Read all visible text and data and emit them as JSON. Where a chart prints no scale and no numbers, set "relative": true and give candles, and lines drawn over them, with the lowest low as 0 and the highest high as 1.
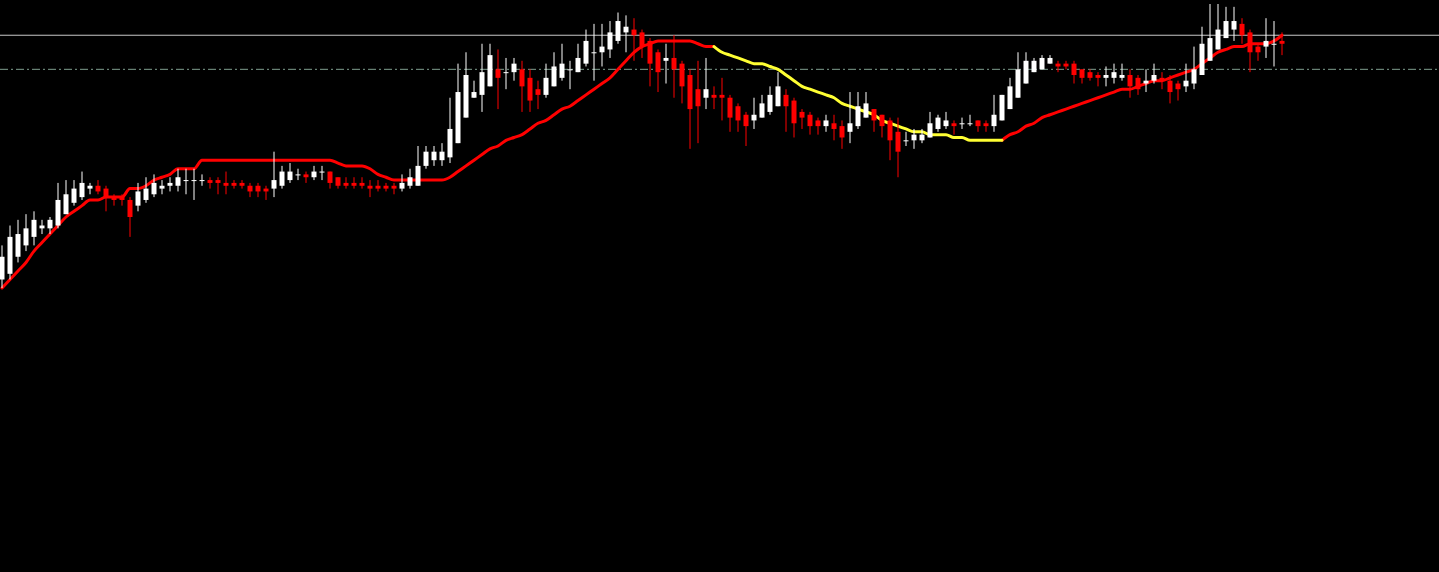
{
  "chart_data": {
    "type": "candlestick",
    "relative": true,
    "categories": [
      null,
      null,
      null,
      null,
      null,
      null,
      null,
      null,
      null,
      null,
      null,
      null,
      null,
      null,
      null,
      null,
      null,
      null,
      null,
      null,
      null,
      null,
      null,
      null,
      null,
      null,
      null,
      null,
      null,
      null,
      null,
      null,
      null,
      null,
      null,
      null,
      null,
      null,
      null,
      null,
      null,
      null,
      null,
      null,
      null,
      null,
      null,
      null,
      null,
      null,
      null,
      null,
      null,
      null,
      null,
      null,
      null,
      null,
      null,
      null,
      null,
      null,
      null,
      null,
      null,
      null,
      null,
      null,
      null,
      null,
      null,
      null,
      null,
      null,
      null,
      null,
      null,
      null,
      null,
      null,
      null,
      null,
      null,
      null,
      null,
      null,
      null,
      null,
      null,
      null,
      null,
      null,
      null,
      null,
      null,
      null,
      null,
      null,
      null,
      null,
      null,
      null,
      null,
      null,
      null,
      null,
      null,
      null,
      null,
      null,
      null,
      null,
      null,
      null,
      null,
      null,
      null,
      null,
      null,
      null,
      null,
      null,
      null,
      null,
      null,
      null,
      null,
      null,
      null,
      null,
      null,
      null,
      null,
      null,
      null,
      null,
      null,
      null,
      null,
      null,
      null,
      null,
      null,
      null,
      null,
      null,
      null,
      null,
      null,
      null,
      null,
      null,
      null,
      null,
      null,
      null,
      null,
      null,
      null,
      null,
      null
    ],
    "ohlc": [
      [
        0.03,
        0.15,
        0,
        0.11
      ],
      [
        0.05,
        0.22,
        0.03,
        0.18
      ],
      [
        0.11,
        0.24,
        0.09,
        0.19
      ],
      [
        0.15,
        0.26,
        0.13,
        0.21
      ],
      [
        0.18,
        0.27,
        0.15,
        0.24
      ],
      [
        0.21,
        0.24,
        0.19,
        0.22
      ],
      [
        0.21,
        0.25,
        0.19,
        0.24
      ],
      [
        0.22,
        0.37,
        0.21,
        0.31
      ],
      [
        0.26,
        0.38,
        0.26,
        0.33
      ],
      [
        0.3,
        0.38,
        0.29,
        0.35
      ],
      [
        0.32,
        0.41,
        0.31,
        0.37
      ],
      [
        0.35,
        0.37,
        0.33,
        0.36
      ],
      [
        0.36,
        0.38,
        0.33,
        0.34
      ],
      [
        0.35,
        0.36,
        0.27,
        0.32
      ],
      [
        0.32,
        0.33,
        0.29,
        0.31
      ],
      [
        0.32,
        0.33,
        0.29,
        0.31
      ],
      [
        0.31,
        0.32,
        0.18,
        0.25
      ],
      [
        0.29,
        0.37,
        0.27,
        0.34
      ],
      [
        0.31,
        0.39,
        0.3,
        0.35
      ],
      [
        0.33,
        0.4,
        0.32,
        0.37
      ],
      [
        0.35,
        0.38,
        0.33,
        0.36
      ],
      [
        0.36,
        0.39,
        0.34,
        0.37
      ],
      [
        0.36,
        0.42,
        0.34,
        0.39
      ],
      [
        0.38,
        0.42,
        0.33,
        0.38
      ],
      [
        0.38,
        0.42,
        0.31,
        0.38
      ],
      [
        0.38,
        0.4,
        0.36,
        0.38
      ],
      [
        0.38,
        0.39,
        0.35,
        0.37
      ],
      [
        0.38,
        0.39,
        0.33,
        0.37
      ],
      [
        0.37,
        0.41,
        0.33,
        0.36
      ],
      [
        0.37,
        0.38,
        0.35,
        0.36
      ],
      [
        0.37,
        0.38,
        0.35,
        0.36
      ],
      [
        0.36,
        0.37,
        0.32,
        0.34
      ],
      [
        0.36,
        0.37,
        0.32,
        0.34
      ],
      [
        0.35,
        0.36,
        0.31,
        0.34
      ],
      [
        0.35,
        0.48,
        0.32,
        0.38
      ],
      [
        0.36,
        0.43,
        0.35,
        0.41
      ],
      [
        0.38,
        0.44,
        0.37,
        0.41
      ],
      [
        0.4,
        0.42,
        0.38,
        0.4
      ],
      [
        0.4,
        0.41,
        0.37,
        0.39
      ],
      [
        0.39,
        0.43,
        0.38,
        0.41
      ],
      [
        0.41,
        0.43,
        0.38,
        0.41
      ],
      [
        0.41,
        0.41,
        0.35,
        0.37
      ],
      [
        0.39,
        0.39,
        0.35,
        0.36
      ],
      [
        0.37,
        0.39,
        0.35,
        0.36
      ],
      [
        0.37,
        0.39,
        0.35,
        0.36
      ],
      [
        0.37,
        0.39,
        0.35,
        0.36
      ],
      [
        0.36,
        0.38,
        0.32,
        0.35
      ],
      [
        0.36,
        0.38,
        0.34,
        0.35
      ],
      [
        0.36,
        0.37,
        0.34,
        0.35
      ],
      [
        0.36,
        0.37,
        0.33,
        0.35
      ],
      [
        0.35,
        0.4,
        0.34,
        0.37
      ],
      [
        0.36,
        0.42,
        0.35,
        0.39
      ],
      [
        0.36,
        0.5,
        0.36,
        0.43
      ],
      [
        0.43,
        0.5,
        0.42,
        0.48
      ],
      [
        0.45,
        0.5,
        0.43,
        0.48
      ],
      [
        0.45,
        0.51,
        0.43,
        0.48
      ],
      [
        0.46,
        0.67,
        0.44,
        0.56
      ],
      [
        0.51,
        0.79,
        0.51,
        0.69
      ],
      [
        0.6,
        0.83,
        0.6,
        0.75
      ],
      [
        0.67,
        0.73,
        0.67,
        0.69
      ],
      [
        0.68,
        0.86,
        0.62,
        0.76
      ],
      [
        0.71,
        0.86,
        0.71,
        0.82
      ],
      [
        0.77,
        0.84,
        0.63,
        0.74
      ],
      [
        0.76,
        0.81,
        0.7,
        0.76
      ],
      [
        0.76,
        0.81,
        0.73,
        0.79
      ],
      [
        0.77,
        0.8,
        0.62,
        0.71
      ],
      [
        0.74,
        0.77,
        0.62,
        0.66
      ],
      [
        0.7,
        0.73,
        0.63,
        0.68
      ],
      [
        0.68,
        0.79,
        0.67,
        0.74
      ],
      [
        0.71,
        0.83,
        0.71,
        0.78
      ],
      [
        0.74,
        0.86,
        0.73,
        0.79
      ],
      [
        0.77,
        0.8,
        0.7,
        0.77
      ],
      [
        0.76,
        0.86,
        0.76,
        0.81
      ],
      [
        0.79,
        0.91,
        0.78,
        0.87
      ],
      [
        0.83,
        0.93,
        0.73,
        0.83
      ],
      [
        0.83,
        0.93,
        0.78,
        0.85
      ],
      [
        0.84,
        0.94,
        0.81,
        0.9
      ],
      [
        0.87,
        0.97,
        0.86,
        0.94
      ],
      [
        0.9,
        0.96,
        0.83,
        0.92
      ],
      [
        0.91,
        0.95,
        0.8,
        0.89
      ],
      [
        0.9,
        0.91,
        0.81,
        0.85
      ],
      [
        0.87,
        0.88,
        0.71,
        0.79
      ],
      [
        0.83,
        0.84,
        0.69,
        0.76
      ],
      [
        0.8,
        0.86,
        0.72,
        0.81
      ],
      [
        0.81,
        0.89,
        0.67,
        0.77
      ],
      [
        0.79,
        0.8,
        0.65,
        0.71
      ],
      [
        0.75,
        0.77,
        0.49,
        0.63
      ],
      [
        0.7,
        0.8,
        0.51,
        0.64
      ],
      [
        0.67,
        0.81,
        0.63,
        0.7
      ],
      [
        0.68,
        0.71,
        0.63,
        0.67
      ],
      [
        0.68,
        0.74,
        0.59,
        0.67
      ],
      [
        0.67,
        0.68,
        0.55,
        0.6
      ],
      [
        0.64,
        0.65,
        0.55,
        0.59
      ],
      [
        0.61,
        0.62,
        0.5,
        0.57
      ],
      [
        0.59,
        0.67,
        0.56,
        0.61
      ],
      [
        0.6,
        0.68,
        0.6,
        0.65
      ],
      [
        0.62,
        0.71,
        0.61,
        0.68
      ],
      [
        0.64,
        0.76,
        0.64,
        0.71
      ],
      [
        0.68,
        0.7,
        0.55,
        0.64
      ],
      [
        0.66,
        0.67,
        0.53,
        0.58
      ],
      [
        0.62,
        0.63,
        0.56,
        0.6
      ],
      [
        0.61,
        0.62,
        0.54,
        0.57
      ],
      [
        0.59,
        0.6,
        0.54,
        0.57
      ],
      [
        0.57,
        0.61,
        0.55,
        0.59
      ],
      [
        0.58,
        0.61,
        0.52,
        0.56
      ],
      [
        0.57,
        0.59,
        0.49,
        0.53
      ],
      [
        0.55,
        0.69,
        0.51,
        0.58
      ],
      [
        0.57,
        0.69,
        0.56,
        0.64
      ],
      [
        0.6,
        0.69,
        0.6,
        0.65
      ],
      [
        0.63,
        0.63,
        0.55,
        0.59
      ],
      [
        0.61,
        0.61,
        0.53,
        0.57
      ],
      [
        0.59,
        0.6,
        0.45,
        0.52
      ],
      [
        0.55,
        0.6,
        0.39,
        0.48
      ],
      [
        0.52,
        0.55,
        0.5,
        0.52
      ],
      [
        0.52,
        0.56,
        0.49,
        0.54
      ],
      [
        0.52,
        0.56,
        0.51,
        0.54
      ],
      [
        0.53,
        0.62,
        0.53,
        0.58
      ],
      [
        0.56,
        0.61,
        0.55,
        0.6
      ],
      [
        0.57,
        0.62,
        0.56,
        0.59
      ],
      [
        0.58,
        0.59,
        0.54,
        0.57
      ],
      [
        0.58,
        0.6,
        0.56,
        0.58
      ],
      [
        0.58,
        0.61,
        0.57,
        0.58
      ],
      [
        0.59,
        0.59,
        0.55,
        0.57
      ],
      [
        0.58,
        0.59,
        0.55,
        0.57
      ],
      [
        0.57,
        0.68,
        0.55,
        0.61
      ],
      [
        0.59,
        0.68,
        0.59,
        0.68
      ],
      [
        0.63,
        0.74,
        0.63,
        0.71
      ],
      [
        0.67,
        0.83,
        0.67,
        0.77
      ],
      [
        0.72,
        0.83,
        0.72,
        0.8
      ],
      [
        0.76,
        0.81,
        0.76,
        0.8
      ],
      [
        0.77,
        0.82,
        0.77,
        0.81
      ],
      [
        0.79,
        0.82,
        0.79,
        0.81
      ],
      [
        0.79,
        0.8,
        0.76,
        0.78
      ],
      [
        0.79,
        0.8,
        0.77,
        0.78
      ],
      [
        0.79,
        0.8,
        0.72,
        0.75
      ],
      [
        0.77,
        0.77,
        0.72,
        0.74
      ],
      [
        0.76,
        0.77,
        0.73,
        0.74
      ],
      [
        0.75,
        0.76,
        0.71,
        0.74
      ],
      [
        0.74,
        0.78,
        0.71,
        0.75
      ],
      [
        0.74,
        0.79,
        0.72,
        0.76
      ],
      [
        0.74,
        0.79,
        0.73,
        0.75
      ],
      [
        0.75,
        0.77,
        0.67,
        0.71
      ],
      [
        0.74,
        0.75,
        0.68,
        0.7
      ],
      [
        0.72,
        0.77,
        0.69,
        0.73
      ],
      [
        0.73,
        0.79,
        0.72,
        0.75
      ],
      [
        0.74,
        0.76,
        0.7,
        0.73
      ],
      [
        0.73,
        0.75,
        0.65,
        0.69
      ],
      [
        0.72,
        0.73,
        0.66,
        0.7
      ],
      [
        0.71,
        0.79,
        0.69,
        0.73
      ],
      [
        0.72,
        0.85,
        0.7,
        0.77
      ],
      [
        0.75,
        0.92,
        0.75,
        0.86
      ],
      [
        0.8,
        1,
        0.8,
        0.88
      ],
      [
        0.84,
        1,
        0.84,
        0.91
      ],
      [
        0.88,
        0.99,
        0.88,
        0.94
      ],
      [
        0.91,
        0.99,
        0.87,
        0.94
      ],
      [
        0.93,
        0.95,
        0.86,
        0.89
      ],
      [
        0.9,
        0.91,
        0.76,
        0.83
      ],
      [
        0.85,
        0.86,
        0.8,
        0.83
      ],
      [
        0.85,
        0.95,
        0.81,
        0.87
      ],
      [
        0.86,
        0.94,
        0.78,
        0.86
      ],
      [
        0.87,
        0.9,
        0.82,
        0.86
      ]
    ],
    "colors": [
      "#ffffff",
      "#ffffff",
      "#ffffff",
      "#ffffff",
      "#ffffff",
      "#ffffff",
      "#ffffff",
      "#ffffff",
      "#ffffff",
      "#ffffff",
      "#ffffff",
      "#ffffff",
      "#ff0000",
      "#ff0000",
      "#ff0000",
      "#ff0000",
      "#ff0000",
      "#ffffff",
      "#ffffff",
      "#ffffff",
      "#ffffff",
      "#ffffff",
      "#ffffff",
      "#ffffff",
      "#ffffff",
      "#ffffff",
      "#ff0000",
      "#ff0000",
      "#ff0000",
      "#ff0000",
      "#ff0000",
      "#ff0000",
      "#ff0000",
      "#ff0000",
      "#ffffff",
      "#ffffff",
      "#ffffff",
      "#ffffff",
      "#ff0000",
      "#ffffff",
      "#ffffff",
      "#ff0000",
      "#ff0000",
      "#ff0000",
      "#ff0000",
      "#ff0000",
      "#ff0000",
      "#ff0000",
      "#ff0000",
      "#ff0000",
      "#ffffff",
      "#ffffff",
      "#ffffff",
      "#ffffff",
      "#ffffff",
      "#ffffff",
      "#ffffff",
      "#ffffff",
      "#ffffff",
      "#ffffff",
      "#ffffff",
      "#ffffff",
      "#ff0000",
      "#ffffff",
      "#ffffff",
      "#ff0000",
      "#ff0000",
      "#ff0000",
      "#ffffff",
      "#ffffff",
      "#ffffff",
      "#ffffff",
      "#ffffff",
      "#ffffff",
      "#ffffff",
      "#ffffff",
      "#ffffff",
      "#ffffff",
      "#ffffff",
      "#ff0000",
      "#ff0000",
      "#ff0000",
      "#ff0000",
      "#ffffff",
      "#ff0000",
      "#ff0000",
      "#ff0000",
      "#ff0000",
      "#ffffff",
      "#ff0000",
      "#ff0000",
      "#ff0000",
      "#ff0000",
      "#ff0000",
      "#ffffff",
      "#ffffff",
      "#ffffff",
      "#ffffff",
      "#ff0000",
      "#ff0000",
      "#ff0000",
      "#ff0000",
      "#ff0000",
      "#ffffff",
      "#ff0000",
      "#ff0000",
      "#ffffff",
      "#ffffff",
      "#ffffff",
      "#ff0000",
      "#ff0000",
      "#ff0000",
      "#ff0000",
      "#ffffff",
      "#ffffff",
      "#ffffff",
      "#ffffff",
      "#ffffff",
      "#ffffff",
      "#ff0000",
      "#ffffff",
      "#ffffff",
      "#ff0000",
      "#ff0000",
      "#ffffff",
      "#ffffff",
      "#ffffff",
      "#ffffff",
      "#ffffff",
      "#ffffff",
      "#ffffff",
      "#ffffff",
      "#ff0000",
      "#ff0000",
      "#ff0000",
      "#ff0000",
      "#ff0000",
      "#ff0000",
      "#ffffff",
      "#ffffff",
      "#ffffff",
      "#ff0000",
      "#ff0000",
      "#ffffff",
      "#ffffff",
      "#ff0000",
      "#ff0000",
      "#ff0000",
      "#ffffff",
      "#ffffff",
      "#ffffff",
      "#ffffff",
      "#ffffff",
      "#ffffff",
      "#ffffff",
      "#ff0000",
      "#ff0000",
      "#ff0000",
      "#ffffff",
      "#ffffff",
      "#ff0000"
    ],
    "series": [
      {
        "type": "line",
        "color": "#ff0000",
        "values": [
          0,
          0.03,
          0.06,
          0.09,
          0.13,
          0.16,
          0.19,
          0.22,
          0.25,
          0.27,
          0.29,
          0.31,
          0.31,
          0.32,
          0.32,
          0.32,
          0.35,
          0.35,
          0.36,
          0.38,
          0.39,
          0.4,
          0.42,
          0.42,
          0.42,
          0.45,
          0.45,
          0.45,
          0.45,
          0.45,
          0.45,
          0.45,
          0.45,
          0.45,
          0.45,
          0.45,
          0.45,
          0.45,
          0.45,
          0.45,
          0.45,
          0.45,
          0.44,
          0.43,
          0.43,
          0.43,
          0.42,
          0.4,
          0.39,
          0.38,
          0.38,
          0.38,
          0.38,
          0.38,
          0.38,
          0.38,
          0.39,
          0.41,
          0.43,
          0.45,
          0.47,
          0.49,
          0.5,
          0.52,
          0.53,
          0.54,
          0.56,
          0.58,
          0.59,
          0.61,
          0.63,
          0.64,
          0.66,
          0.68,
          0.7,
          0.72,
          0.74,
          0.77,
          0.8,
          0.83,
          0.85,
          0.86,
          0.87,
          0.87,
          0.87,
          0.87,
          0.87,
          0.86,
          0.85,
          0.85,
          null,
          null,
          null,
          null,
          null,
          null,
          null,
          null,
          null,
          null,
          null,
          null,
          null,
          null,
          null,
          null,
          null,
          null,
          null,
          null,
          null,
          null,
          null,
          null,
          null,
          null,
          null,
          null,
          null,
          null,
          null,
          null,
          null,
          null,
          null,
          0.52,
          0.54,
          0.55,
          0.57,
          0.58,
          0.6,
          0.61,
          0.62,
          0.63,
          0.64,
          0.65,
          0.66,
          0.67,
          0.68,
          0.69,
          0.7,
          0.7,
          0.71,
          0.72,
          0.73,
          0.73,
          0.74,
          0.75,
          0.76,
          0.77,
          0.79,
          0.81,
          0.83,
          0.84,
          0.85,
          0.85,
          0.86,
          0.86,
          0.86,
          0.87,
          0.89
        ]
      },
      {
        "type": "line",
        "color": "#ffff33",
        "values": [
          null,
          null,
          null,
          null,
          null,
          null,
          null,
          null,
          null,
          null,
          null,
          null,
          null,
          null,
          null,
          null,
          null,
          null,
          null,
          null,
          null,
          null,
          null,
          null,
          null,
          null,
          null,
          null,
          null,
          null,
          null,
          null,
          null,
          null,
          null,
          null,
          null,
          null,
          null,
          null,
          null,
          null,
          null,
          null,
          null,
          null,
          null,
          null,
          null,
          null,
          null,
          null,
          null,
          null,
          null,
          null,
          null,
          null,
          null,
          null,
          null,
          null,
          null,
          null,
          null,
          null,
          null,
          null,
          null,
          null,
          null,
          null,
          null,
          null,
          null,
          null,
          null,
          null,
          null,
          null,
          null,
          null,
          null,
          null,
          null,
          null,
          null,
          null,
          null,
          0.85,
          0.83,
          0.82,
          0.81,
          0.8,
          0.79,
          0.79,
          0.78,
          0.77,
          0.75,
          0.73,
          0.71,
          0.7,
          0.69,
          0.68,
          0.67,
          0.65,
          0.64,
          0.63,
          0.62,
          0.61,
          0.59,
          0.58,
          0.57,
          0.56,
          0.55,
          0.55,
          0.54,
          0.54,
          0.54,
          0.53,
          0.53,
          0.52,
          0.52,
          0.52,
          0.52,
          0.52,
          null,
          null,
          null,
          null,
          null,
          null,
          null,
          null,
          null,
          null,
          null,
          null,
          null,
          null,
          null,
          null,
          null,
          null,
          null,
          null,
          null,
          null,
          null,
          null,
          null,
          null,
          null,
          null,
          null,
          null,
          null,
          null,
          null,
          null,
          null
        ]
      }
    ],
    "ref_lines": [
      {
        "axis": "y",
        "value": 0.89,
        "color": "#c8c8c8",
        "line_style": "solid"
      },
      {
        "axis": "y",
        "value": 0.77,
        "color": "#7f9f8f",
        "line_style": "dashed"
      }
    ]
  }
}
